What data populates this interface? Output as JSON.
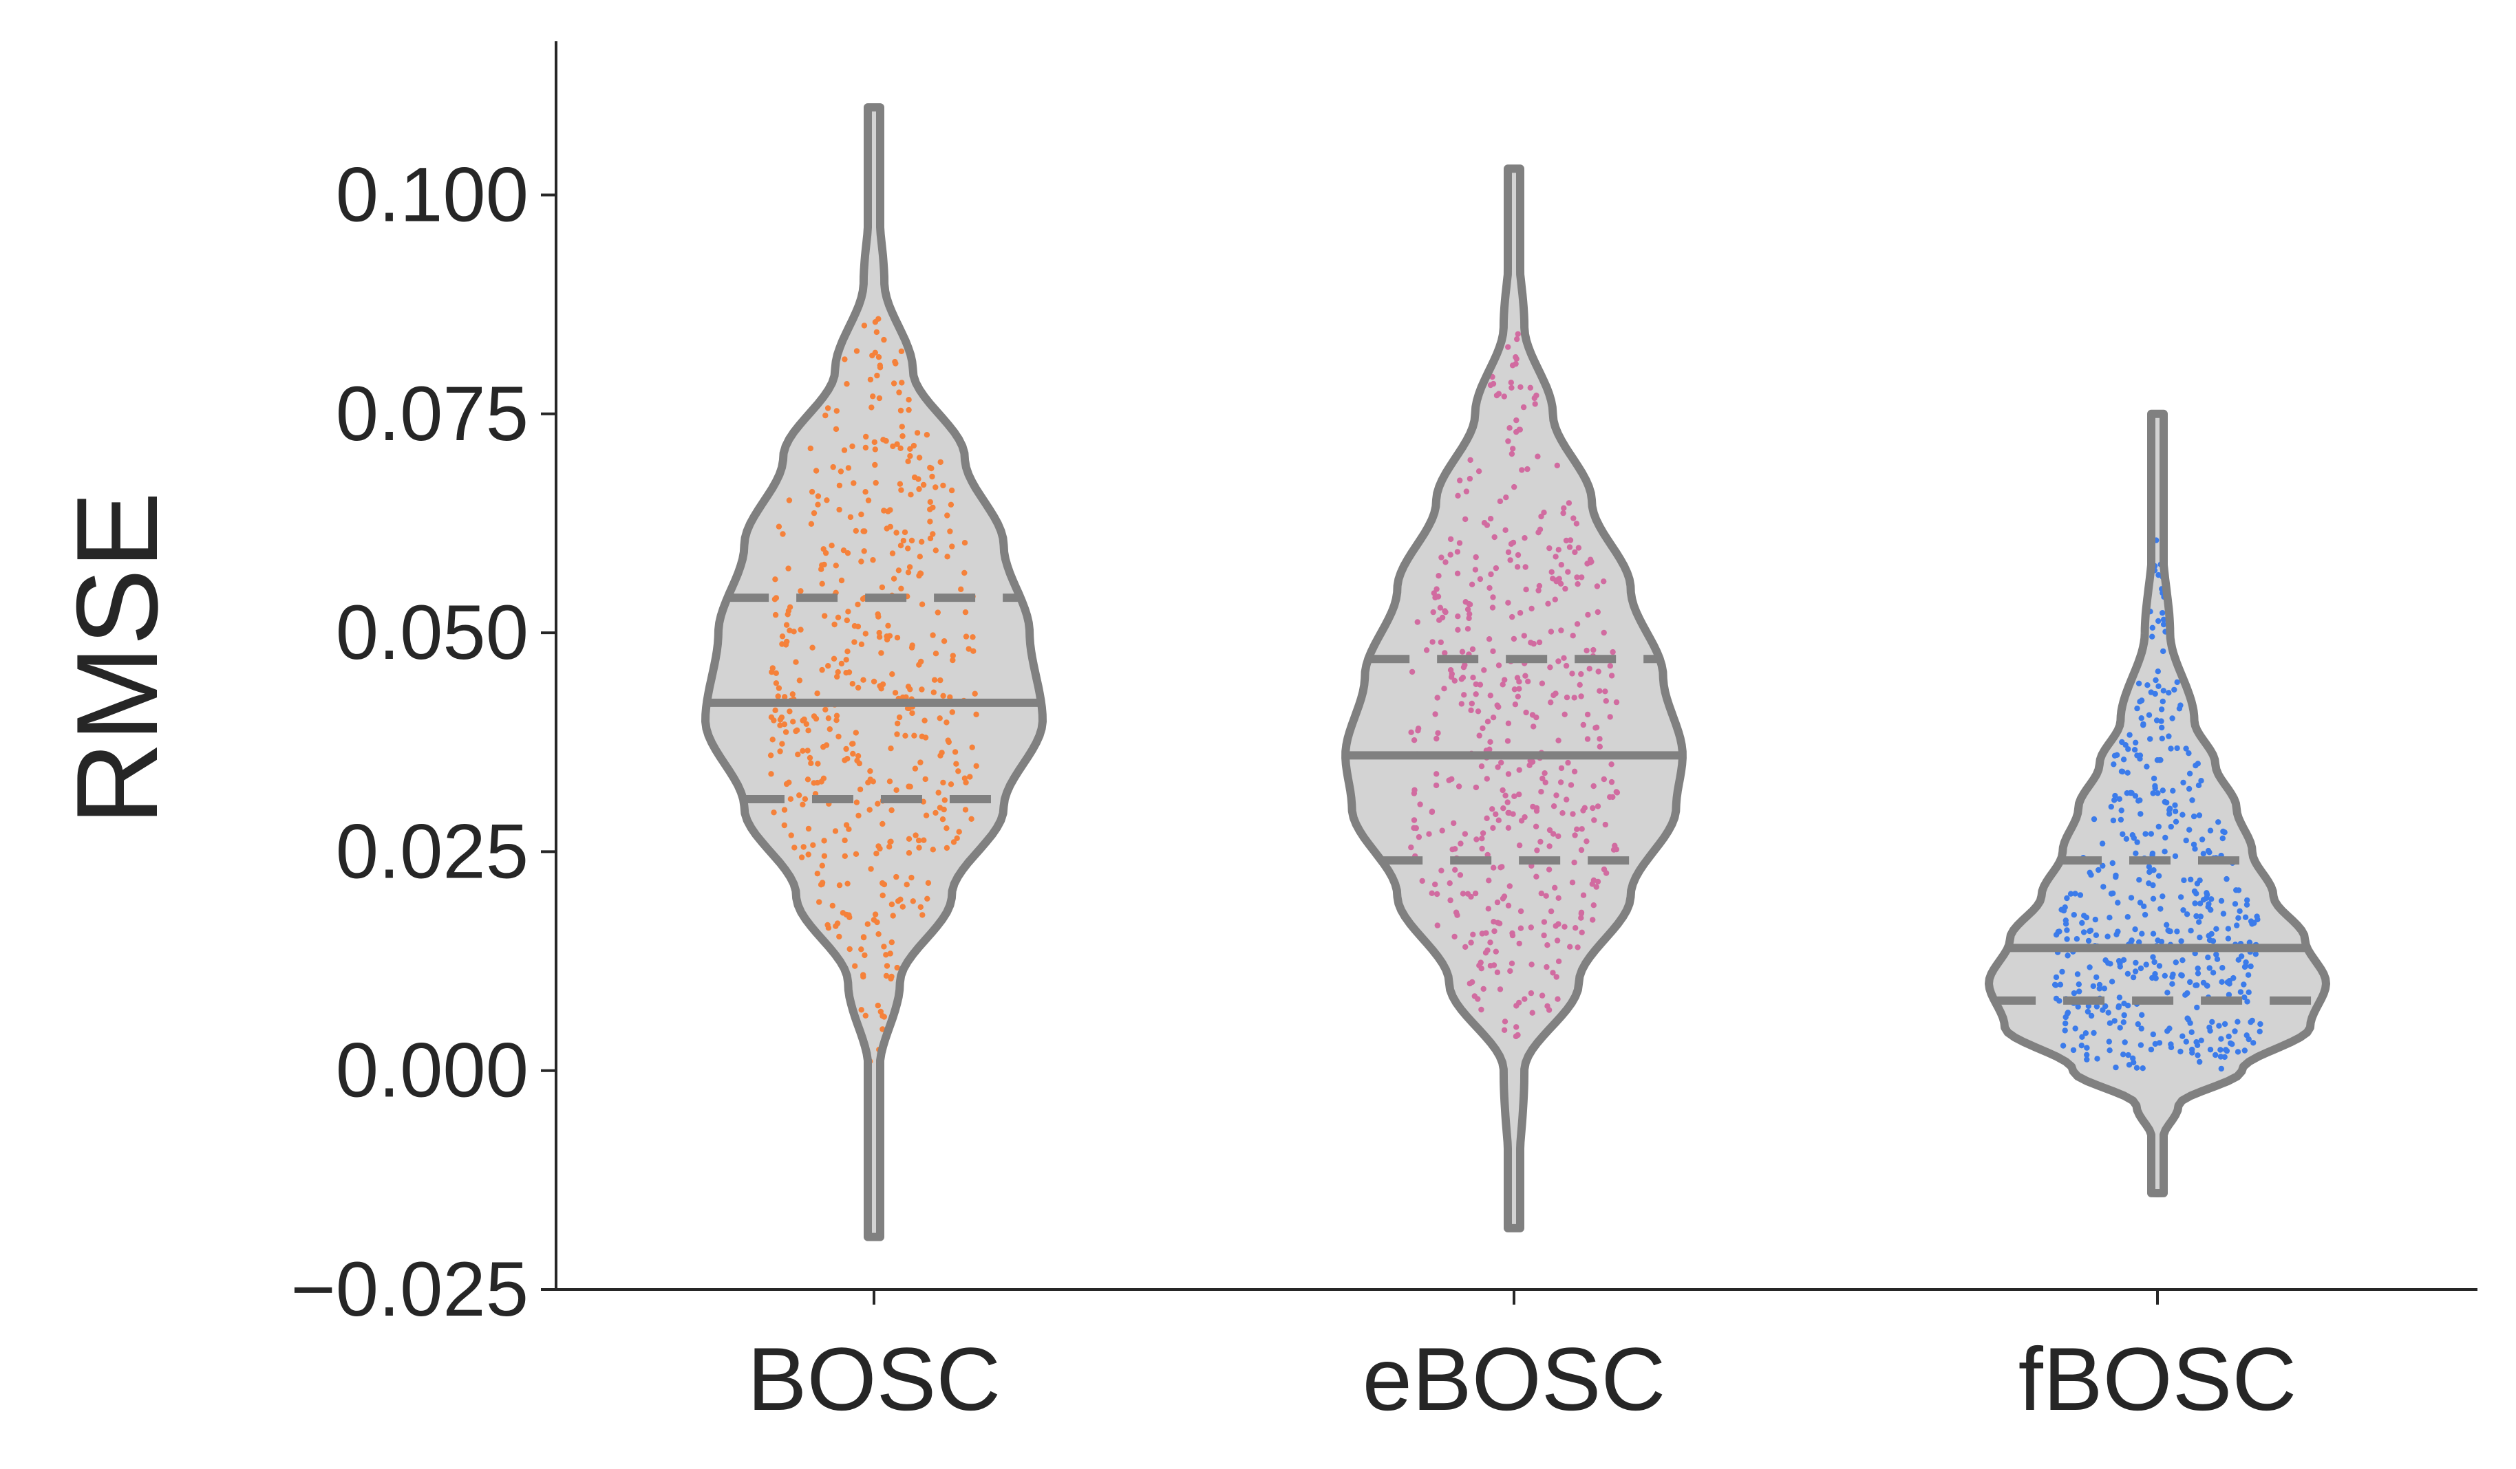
{
  "chart_data": {
    "type": "violin",
    "ylabel": "RMSE",
    "xlabel": "",
    "ylim": [
      -0.025,
      0.118
    ],
    "yticks": [
      -0.025,
      0.0,
      0.025,
      0.05,
      0.075,
      0.1
    ],
    "ytick_labels": [
      "−0.025",
      "0.000",
      "0.025",
      "0.050",
      "0.075",
      "0.100"
    ],
    "categories": [
      "BOSC",
      "eBOSC",
      "fBOSC"
    ],
    "grid": false,
    "legend": "none",
    "violin_style": {
      "fill": "#d3d3d3",
      "edge": "#808080"
    },
    "series": [
      {
        "category": "BOSC",
        "color": "#f5813a",
        "median": 0.042,
        "q1": 0.031,
        "q3": 0.054,
        "range": [
          -0.019,
          0.11
        ],
        "points_range": [
          0.001,
          0.091
        ],
        "density": [
          [
            -0.019,
            0.001
          ],
          [
            0.0,
            0.004
          ],
          [
            0.01,
            0.02
          ],
          [
            0.02,
            0.06
          ],
          [
            0.03,
            0.1
          ],
          [
            0.04,
            0.13
          ],
          [
            0.05,
            0.12
          ],
          [
            0.06,
            0.1
          ],
          [
            0.07,
            0.07
          ],
          [
            0.08,
            0.03
          ],
          [
            0.09,
            0.008
          ],
          [
            0.1,
            0.003
          ],
          [
            0.11,
            0.001
          ]
        ]
      },
      {
        "category": "eBOSC",
        "color": "#d16ba0",
        "median": 0.036,
        "q1": 0.024,
        "q3": 0.047,
        "range": [
          -0.018,
          0.103
        ],
        "points_range": [
          0.001,
          0.085
        ],
        "density": [
          [
            -0.018,
            0.001
          ],
          [
            0.0,
            0.008
          ],
          [
            0.01,
            0.05
          ],
          [
            0.02,
            0.09
          ],
          [
            0.03,
            0.125
          ],
          [
            0.036,
            0.13
          ],
          [
            0.045,
            0.115
          ],
          [
            0.055,
            0.09
          ],
          [
            0.065,
            0.06
          ],
          [
            0.075,
            0.03
          ],
          [
            0.085,
            0.008
          ],
          [
            0.095,
            0.003
          ],
          [
            0.103,
            0.001
          ]
        ]
      },
      {
        "category": "fBOSC",
        "color": "#3b7bea",
        "median": 0.014,
        "q1": 0.008,
        "q3": 0.024,
        "range": [
          -0.014,
          0.075
        ],
        "points_range": [
          0.0,
          0.061
        ],
        "density": [
          [
            -0.014,
            0.001
          ],
          [
            -0.008,
            0.004
          ],
          [
            -0.004,
            0.02
          ],
          [
            0.0,
            0.08
          ],
          [
            0.005,
            0.145
          ],
          [
            0.01,
            0.16
          ],
          [
            0.015,
            0.14
          ],
          [
            0.02,
            0.11
          ],
          [
            0.025,
            0.09
          ],
          [
            0.03,
            0.075
          ],
          [
            0.035,
            0.055
          ],
          [
            0.04,
            0.035
          ],
          [
            0.05,
            0.012
          ],
          [
            0.06,
            0.005
          ],
          [
            0.075,
            0.001
          ]
        ]
      }
    ]
  }
}
